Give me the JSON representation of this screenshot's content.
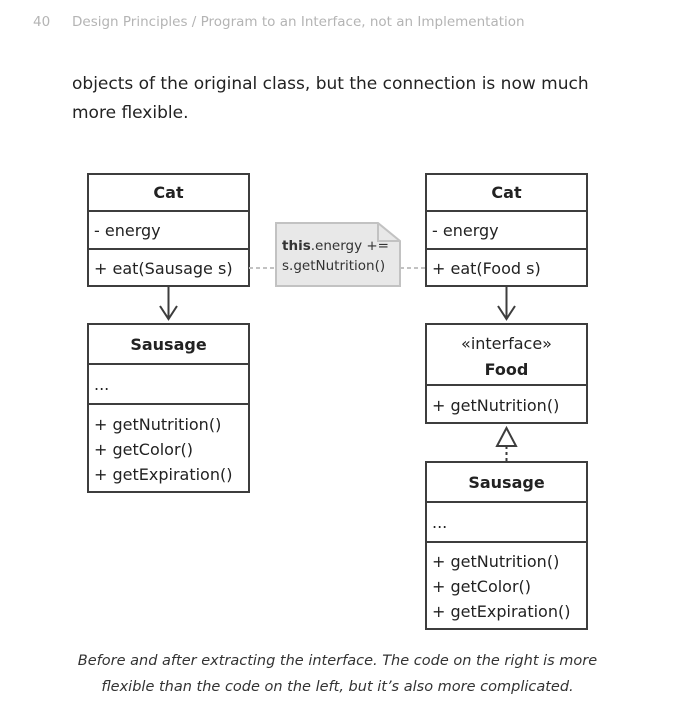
{
  "header": {
    "page_number": "40",
    "running_title": "Design Principles / Program to an Interface, not an Implementation"
  },
  "intro": {
    "line1": "objects of the original class, but the connection is now much",
    "line2": "more flexible."
  },
  "diagram": {
    "left": {
      "cat": {
        "name": "Cat",
        "field": "- energy",
        "method": "+ eat(Sausage s)"
      },
      "sausage": {
        "name": "Sausage",
        "fields": "...",
        "methods": [
          "+ getNutrition()",
          "+ getColor()",
          "+ getExpiration()"
        ]
      }
    },
    "note": {
      "keyword": "this",
      "line1_rest": ".energy +=",
      "line2": "s.getNutrition()"
    },
    "right": {
      "cat": {
        "name": "Cat",
        "field": "- energy",
        "method": "+ eat(Food s)"
      },
      "food": {
        "stereotype": "«interface»",
        "name": "Food",
        "method": "+ getNutrition()"
      },
      "sausage": {
        "name": "Sausage",
        "fields": "...",
        "methods": [
          "+ getNutrition()",
          "+ getColor()",
          "+ getExpiration()"
        ]
      }
    },
    "colors": {
      "stroke": "#3d3d3d",
      "note_fill": "#e8e8e8",
      "note_stroke": "#c2c2c2"
    }
  },
  "caption": {
    "line1": "Before and after extracting the interface. The code on the right is more",
    "line2": "flexible than the code on the left, but it’s also more complicated."
  }
}
